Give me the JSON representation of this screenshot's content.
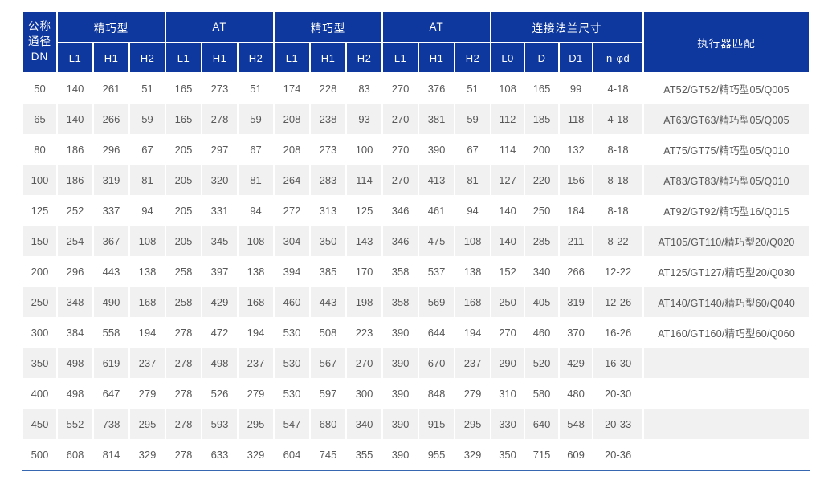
{
  "colors": {
    "header_bg": "#0e389e",
    "header_text": "#ffffff",
    "band_bg": "#f1f1f1",
    "body_text": "#585858",
    "bottom_line": "#3767b1"
  },
  "table": {
    "dn_header_lines": [
      "公称",
      "通径",
      "DN"
    ],
    "groups": [
      {
        "label": "精巧型",
        "cols": [
          "L1",
          "H1",
          "H2"
        ]
      },
      {
        "label": "AT",
        "cols": [
          "L1",
          "H1",
          "H2"
        ]
      },
      {
        "label": "精巧型",
        "cols": [
          "L1",
          "H1",
          "H2"
        ]
      },
      {
        "label": "AT",
        "cols": [
          "L1",
          "H1",
          "H2"
        ]
      },
      {
        "label": "连接法兰尺寸",
        "cols": [
          "L0",
          "D",
          "D1",
          "n-φd"
        ]
      }
    ],
    "actuator_header": "执行器匹配",
    "rows": [
      {
        "dn": "50",
        "values": [
          "140",
          "261",
          "51",
          "165",
          "273",
          "51",
          "174",
          "228",
          "83",
          "270",
          "376",
          "51",
          "108",
          "165",
          "99",
          "4-18"
        ],
        "actuator": "AT52/GT52/精巧型05/Q005"
      },
      {
        "dn": "65",
        "values": [
          "140",
          "266",
          "59",
          "165",
          "278",
          "59",
          "208",
          "238",
          "93",
          "270",
          "381",
          "59",
          "112",
          "185",
          "118",
          "4-18"
        ],
        "actuator": "AT63/GT63/精巧型05/Q005"
      },
      {
        "dn": "80",
        "values": [
          "186",
          "296",
          "67",
          "205",
          "297",
          "67",
          "208",
          "273",
          "100",
          "270",
          "390",
          "67",
          "114",
          "200",
          "132",
          "8-18"
        ],
        "actuator": "AT75/GT75/精巧型05/Q010"
      },
      {
        "dn": "100",
        "values": [
          "186",
          "319",
          "81",
          "205",
          "320",
          "81",
          "264",
          "283",
          "114",
          "270",
          "413",
          "81",
          "127",
          "220",
          "156",
          "8-18"
        ],
        "actuator": "AT83/GT83/精巧型05/Q010"
      },
      {
        "dn": "125",
        "values": [
          "252",
          "337",
          "94",
          "205",
          "331",
          "94",
          "272",
          "313",
          "125",
          "346",
          "461",
          "94",
          "140",
          "250",
          "184",
          "8-18"
        ],
        "actuator": "AT92/GT92/精巧型16/Q015"
      },
      {
        "dn": "150",
        "values": [
          "254",
          "367",
          "108",
          "205",
          "345",
          "108",
          "304",
          "350",
          "143",
          "346",
          "475",
          "108",
          "140",
          "285",
          "211",
          "8-22"
        ],
        "actuator": "AT105/GT110/精巧型20/Q020"
      },
      {
        "dn": "200",
        "values": [
          "296",
          "443",
          "138",
          "258",
          "397",
          "138",
          "394",
          "385",
          "170",
          "358",
          "537",
          "138",
          "152",
          "340",
          "266",
          "12-22"
        ],
        "actuator": "AT125/GT127/精巧型20/Q030"
      },
      {
        "dn": "250",
        "values": [
          "348",
          "490",
          "168",
          "258",
          "429",
          "168",
          "460",
          "443",
          "198",
          "358",
          "569",
          "168",
          "250",
          "405",
          "319",
          "12-26"
        ],
        "actuator": "AT140/GT140/精巧型60/Q040"
      },
      {
        "dn": "300",
        "values": [
          "384",
          "558",
          "194",
          "278",
          "472",
          "194",
          "530",
          "508",
          "223",
          "390",
          "644",
          "194",
          "270",
          "460",
          "370",
          "16-26"
        ],
        "actuator": "AT160/GT160/精巧型60/Q060"
      },
      {
        "dn": "350",
        "values": [
          "498",
          "619",
          "237",
          "278",
          "498",
          "237",
          "530",
          "567",
          "270",
          "390",
          "670",
          "237",
          "290",
          "520",
          "429",
          "16-30"
        ],
        "actuator": ""
      },
      {
        "dn": "400",
        "values": [
          "498",
          "647",
          "279",
          "278",
          "526",
          "279",
          "530",
          "597",
          "300",
          "390",
          "848",
          "279",
          "310",
          "580",
          "480",
          "20-30"
        ],
        "actuator": ""
      },
      {
        "dn": "450",
        "values": [
          "552",
          "738",
          "295",
          "278",
          "593",
          "295",
          "547",
          "680",
          "340",
          "390",
          "915",
          "295",
          "330",
          "640",
          "548",
          "20-33"
        ],
        "actuator": ""
      },
      {
        "dn": "500",
        "values": [
          "608",
          "814",
          "329",
          "278",
          "633",
          "329",
          "604",
          "745",
          "355",
          "390",
          "955",
          "329",
          "350",
          "715",
          "609",
          "20-36"
        ],
        "actuator": ""
      }
    ]
  }
}
